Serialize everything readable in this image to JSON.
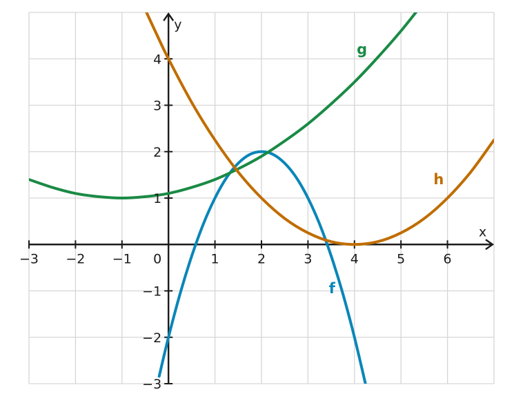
{
  "chart_data": {
    "type": "line",
    "title": "",
    "xlabel": "x",
    "ylabel": "y",
    "xlim": [
      -3,
      7
    ],
    "ylim": [
      -3,
      5
    ],
    "grid": true,
    "x_ticks": [
      -3,
      -2,
      -1,
      0,
      1,
      2,
      3,
      4,
      5,
      6
    ],
    "x_tick_labels": [
      "−3",
      "−2",
      "−1",
      "0",
      "1",
      "2",
      "3",
      "4",
      "5",
      "6"
    ],
    "y_ticks": [
      -3,
      -2,
      -1,
      1,
      2,
      3,
      4
    ],
    "y_tick_labels": [
      "−3",
      "−2",
      "−1",
      "1",
      "2",
      "3",
      "4"
    ],
    "series": [
      {
        "name": "f",
        "color": "#0a86b8",
        "label_at": [
          3.45,
          -1.05
        ],
        "x": [
          -0.2,
          0,
          0.25,
          0.5,
          0.75,
          1,
          1.25,
          1.5,
          1.75,
          2,
          2.25,
          2.5,
          2.75,
          3,
          3.25,
          3.5,
          3.75,
          4,
          4.25
        ],
        "y": [
          -2.84,
          -2.0,
          -1.06,
          -0.25,
          0.44,
          1.0,
          1.44,
          1.75,
          1.94,
          2.0,
          1.94,
          1.75,
          1.44,
          1.0,
          0.44,
          -0.25,
          -1.06,
          -2.0,
          -3.06
        ]
      },
      {
        "name": "g",
        "color": "#1a8a45",
        "label_at": [
          4.05,
          4.1
        ],
        "x": [
          -3,
          -2.5,
          -2,
          -1.5,
          -1,
          -0.5,
          0,
          0.5,
          1,
          1.5,
          2,
          2.5,
          3,
          3.5,
          4,
          4.5,
          5,
          5.5
        ],
        "y": [
          1.4,
          1.23,
          1.1,
          1.03,
          1.0,
          1.03,
          1.1,
          1.23,
          1.4,
          1.63,
          1.9,
          2.23,
          2.6,
          3.03,
          3.5,
          4.03,
          4.6,
          5.23
        ]
      },
      {
        "name": "h",
        "color": "#c06d00",
        "label_at": [
          5.7,
          1.3
        ],
        "x": [
          -0.5,
          -0.25,
          0,
          0.5,
          1,
          1.5,
          2,
          2.5,
          3,
          3.5,
          4,
          4.5,
          5,
          5.5,
          6,
          6.5,
          7
        ],
        "y": [
          5.06,
          4.52,
          4.0,
          3.06,
          2.25,
          1.56,
          1.0,
          0.56,
          0.25,
          0.06,
          0.0,
          0.06,
          0.25,
          0.56,
          1.0,
          1.56,
          2.25
        ]
      }
    ]
  }
}
